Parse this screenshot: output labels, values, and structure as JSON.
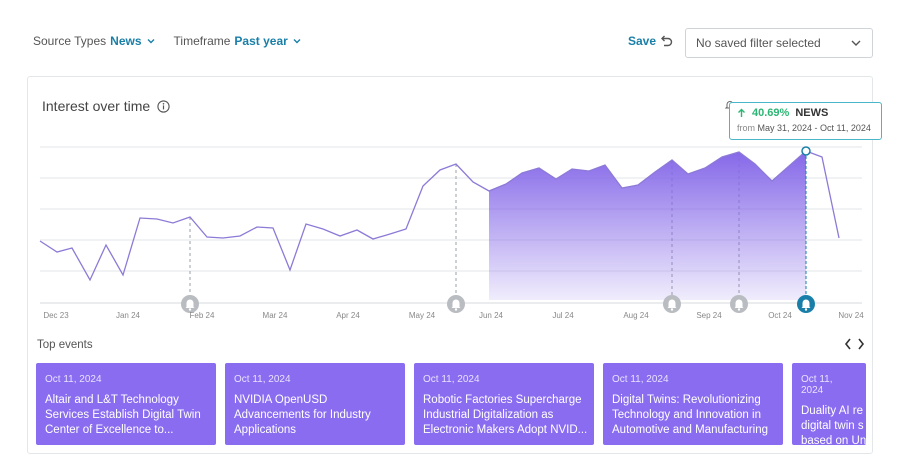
{
  "filters": {
    "source_label": "Source Types",
    "source_value": "News",
    "timeframe_label": "Timeframe",
    "timeframe_value": "Past year"
  },
  "toolbar": {
    "save_label": "Save",
    "saved_filter_placeholder": "No saved filter selected"
  },
  "card": {
    "title": "Interest over time"
  },
  "tooltip": {
    "change": "40.69%",
    "source": "NEWS",
    "from_label": "from",
    "range": "May 31, 2024 - Oct 11, 2024"
  },
  "chart_data": {
    "type": "area",
    "x_ticks": [
      "Dec 23",
      "Jan 24",
      "Feb 24",
      "Mar 24",
      "Apr 24",
      "May 24",
      "Jun 24",
      "Jul 24",
      "Aug 24",
      "Sep 24",
      "Oct 24",
      "Nov 24"
    ],
    "highlight_range": [
      "May 31, 2024",
      "Oct 11, 2024"
    ],
    "event_markers": [
      "Feb 24",
      "May 24",
      "Aug 24",
      "Sep 24",
      "Oct 24"
    ],
    "colors": {
      "line": "#8d7ad6",
      "fill": "#8467e8",
      "accent": "#1a7fa8",
      "marker": "#b9bcc0"
    }
  },
  "top_events": {
    "label": "Top events",
    "items": [
      {
        "date": "Oct 11, 2024",
        "title": "Altair and L&T Technology\nServices Establish Digital Twin\nCenter of Excellence to..."
      },
      {
        "date": "Oct 11, 2024",
        "title": "NVIDIA OpenUSD\nAdvancements for Industry\nApplications"
      },
      {
        "date": "Oct 11, 2024",
        "title": "Robotic Factories Supercharge\nIndustrial Digitalization as\nElectronic Makers Adopt NVID..."
      },
      {
        "date": "Oct 11, 2024",
        "title": "Digital Twins: Revolutionizing\nTechnology and Innovation in\nAutomotive and Manufacturing"
      },
      {
        "date": "Oct 11, 2024",
        "title": "Duality AI re\ndigital twin s\nbased on Un"
      }
    ]
  }
}
